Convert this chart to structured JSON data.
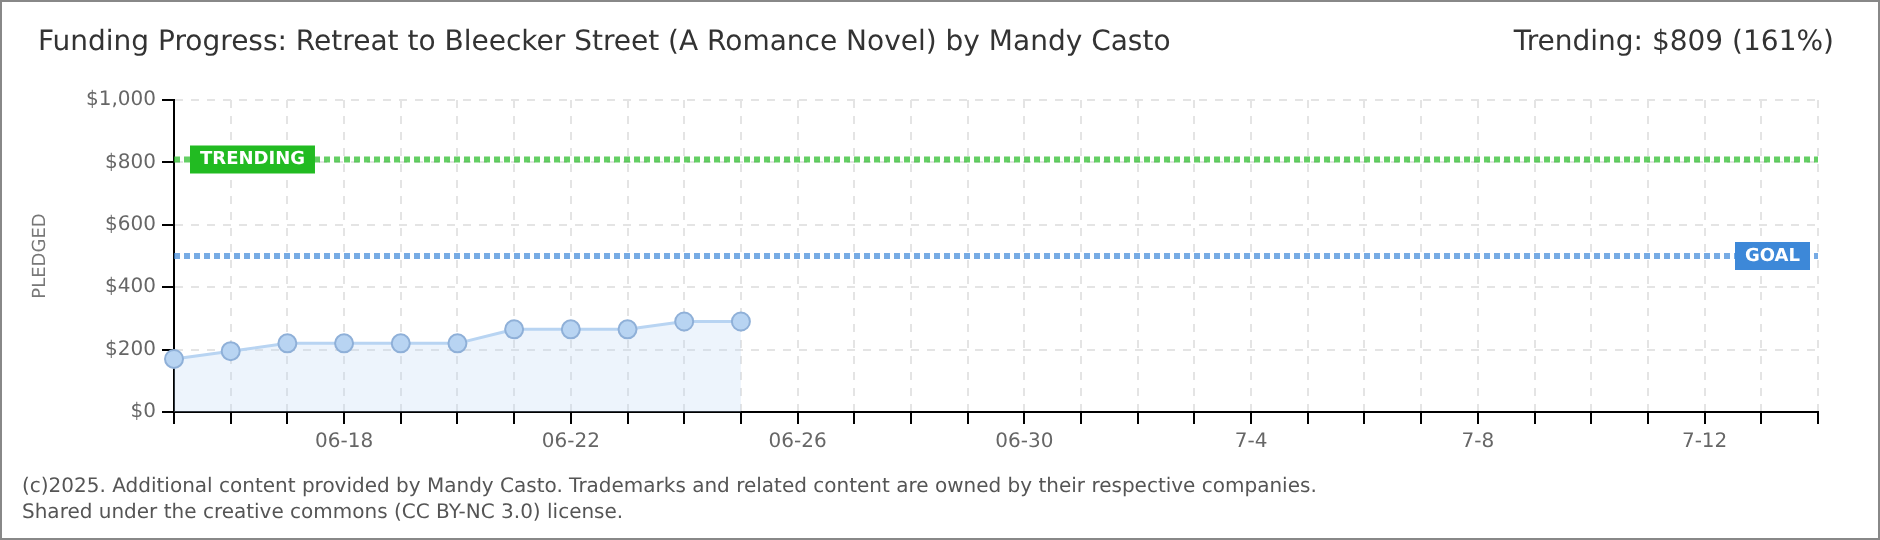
{
  "chart_data": {
    "type": "area",
    "title": "Funding Progress: Retreat to Bleecker Street (A Romance Novel) by Mandy Casto",
    "subtitle": "Trending: $809 (161%)",
    "ylabel": "PLEDGED",
    "categories": [
      null,
      null,
      null,
      "06-18",
      null,
      null,
      null,
      "06-22",
      null,
      null,
      null,
      "06-26",
      null,
      null,
      null,
      "06-30",
      null,
      null,
      null,
      "7-4",
      null,
      null,
      null,
      "7-8",
      null,
      null,
      null,
      "7-12",
      null,
      null
    ],
    "series": [
      {
        "color": "#b8d4f2",
        "values": [
          170,
          195,
          220,
          220,
          220,
          220,
          265,
          265,
          265,
          290,
          290,
          null,
          null,
          null,
          null,
          null,
          null,
          null,
          null,
          null,
          null,
          null,
          null,
          null,
          null,
          null,
          null,
          null,
          null,
          null
        ]
      }
    ],
    "ylim": [
      0,
      1000
    ],
    "yticks": [
      {
        "value": 0,
        "label": "$0"
      },
      {
        "value": 200,
        "label": "$200"
      },
      {
        "value": 400,
        "label": "$400"
      },
      {
        "value": 600,
        "label": "$600"
      },
      {
        "value": 800,
        "label": "$800"
      },
      {
        "value": 1000,
        "label": "$1,000"
      }
    ],
    "ref_lines": [
      {
        "axis": "y",
        "value": 809,
        "label": "TRENDING",
        "color": "#22bb22",
        "line_style": "dotted"
      },
      {
        "axis": "y",
        "value": 500,
        "label": "GOAL",
        "color": "#3d88d8",
        "line_style": "dotted"
      }
    ],
    "grid": true,
    "legend": false,
    "marker": "circle",
    "annotations": [
      "(c)2025. Additional content provided by Mandy Casto. Trademarks and related content are owned by their respective companies.",
      "Shared under the creative commons (CC BY-NC 3.0) license."
    ]
  }
}
